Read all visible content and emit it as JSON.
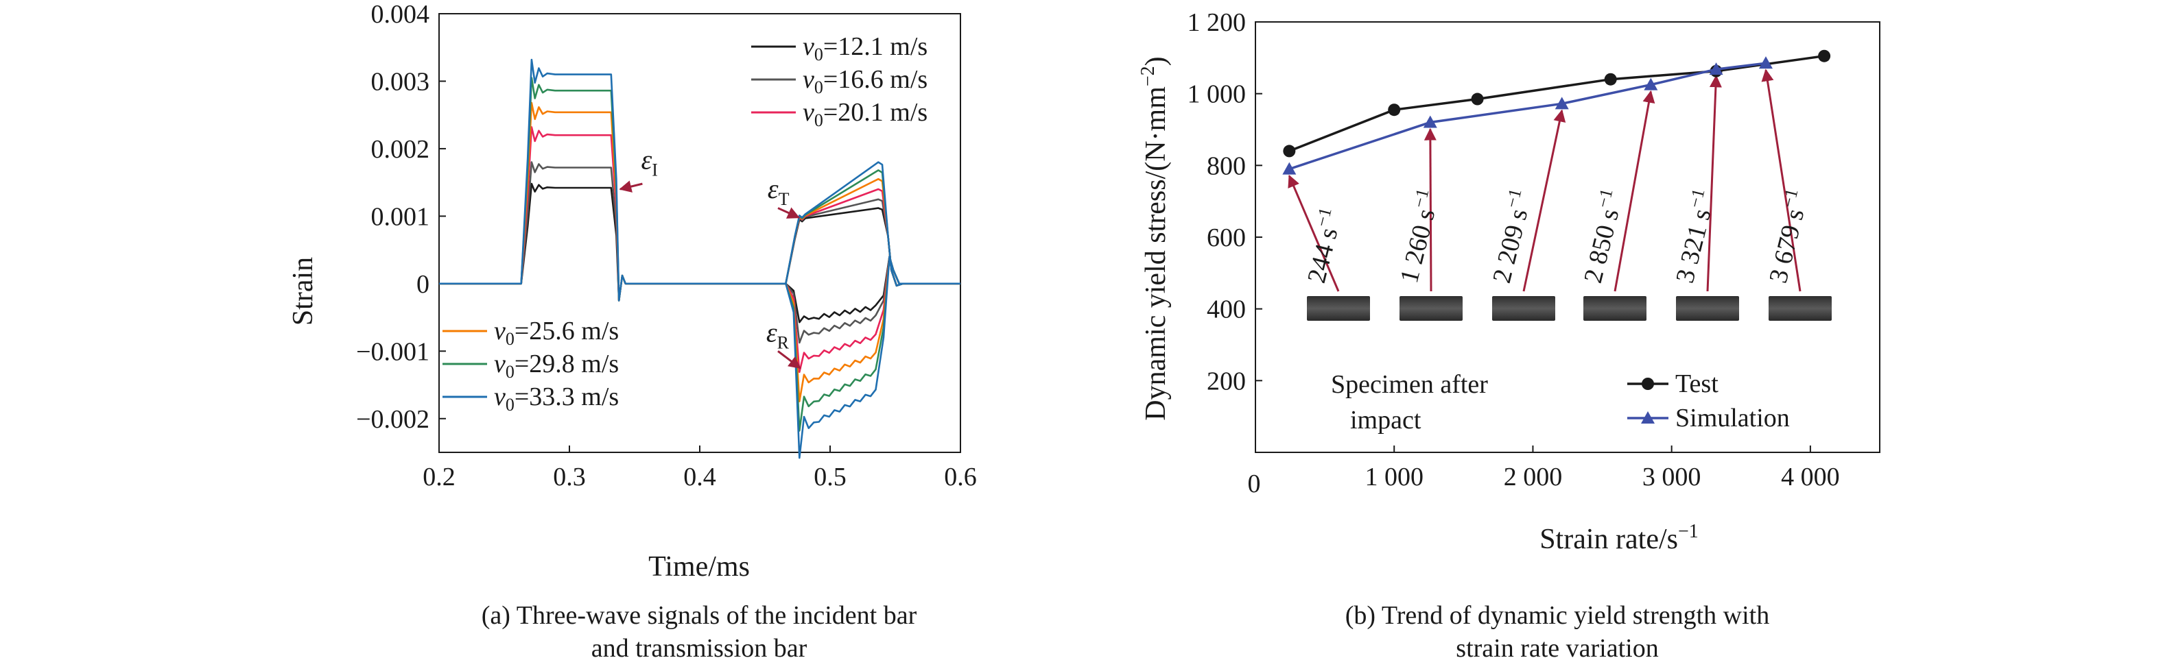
{
  "chart_data": [
    {
      "type": "line",
      "panel": "a",
      "caption_lines": [
        "(a) Three-wave signals of the incident bar",
        "and transmission bar"
      ],
      "xlabel": "Time/ms",
      "ylabel": "Strain",
      "xlim": [
        0.2,
        0.6
      ],
      "ylim": [
        -0.0025,
        0.004
      ],
      "xticks": [
        0.2,
        0.3,
        0.4,
        0.5,
        0.6
      ],
      "xtick_labels": [
        "0.2",
        "0.3",
        "0.4",
        "0.5",
        "0.6"
      ],
      "yticks": [
        -0.002,
        -0.001,
        0,
        0.001,
        0.002,
        0.003,
        0.004
      ],
      "ytick_labels": [
        "−0.002",
        "−0.001",
        "0",
        "0.001",
        "0.002",
        "0.003",
        "0.004"
      ],
      "grid": false,
      "legend_top": [
        "=12.1 m/s",
        "=16.6 m/s",
        "=20.1 m/s"
      ],
      "legend_bottom": [
        "=25.6 m/s",
        "=29.8 m/s",
        "=33.3 m/s"
      ],
      "legend_var": "v",
      "legend_sub": "0",
      "annotations": {
        "incident": {
          "text": "ε",
          "sub": "I",
          "x": 0.335,
          "y": 0.0016
        },
        "transmitted": {
          "text": "ε",
          "sub": "T",
          "x": 0.478,
          "y": 0.00095
        },
        "reflected": {
          "text": "ε",
          "sub": "R",
          "x": 0.478,
          "y": -0.00115
        }
      },
      "series": [
        {
          "velocity": 12.1,
          "color": "#1a1a1a",
          "incident": 0.00142,
          "transmitted_start": 0.00095,
          "transmitted_end": 0.00112,
          "reflected": -0.00052,
          "reflected_end": -0.00035,
          "peak_incident": 0.00148
        },
        {
          "velocity": 16.6,
          "color": "#555555",
          "incident": 0.00172,
          "transmitted_start": 0.00097,
          "transmitted_end": 0.00125,
          "reflected": -0.00075,
          "reflected_end": -0.0005,
          "peak_incident": 0.0018
        },
        {
          "velocity": 20.1,
          "color": "#e8245a",
          "incident": 0.0022,
          "transmitted_start": 0.00098,
          "transmitted_end": 0.0014,
          "reflected": -0.0011,
          "reflected_end": -0.00078,
          "peak_incident": 0.00232
        },
        {
          "velocity": 25.6,
          "color": "#f57c00",
          "incident": 0.00254,
          "transmitted_start": 0.00099,
          "transmitted_end": 0.00155,
          "reflected": -0.00145,
          "reflected_end": -0.00105,
          "peak_incident": 0.00268
        },
        {
          "velocity": 29.8,
          "color": "#2e8b57",
          "incident": 0.00286,
          "transmitted_start": 0.001,
          "transmitted_end": 0.00168,
          "reflected": -0.0018,
          "reflected_end": -0.0013,
          "peak_incident": 0.00305
        },
        {
          "velocity": 33.3,
          "color": "#1f6fb0",
          "incident": 0.0031,
          "transmitted_start": 0.00101,
          "transmitted_end": 0.0018,
          "reflected": -0.00212,
          "reflected_end": -0.0016,
          "peak_incident": 0.00332
        }
      ]
    },
    {
      "type": "line",
      "panel": "b",
      "caption_lines": [
        "(b) Trend of dynamic yield strength with",
        "strain rate variation"
      ],
      "xlabel": "Strain rate/s",
      "xlabel_sup": "−1",
      "ylabel": "Dynamic yield stress/(N·mm",
      "ylabel_sup": "−2",
      "ylabel_tail": ")",
      "xlim": [
        0,
        4500
      ],
      "ylim": [
        0,
        1200
      ],
      "xticks": [
        0,
        1000,
        2000,
        3000,
        4000
      ],
      "xtick_labels": [
        "0",
        "1 000",
        "2 000",
        "3 000",
        "4 000"
      ],
      "yticks": [
        200,
        400,
        600,
        800,
        1000,
        1200
      ],
      "ytick_labels": [
        "200",
        "400",
        "600",
        "800",
        "1 000",
        "1 200"
      ],
      "grid": false,
      "legend_position": "bottom-right",
      "series": [
        {
          "name": "Test",
          "color": "#1a1a1a",
          "marker": "circle",
          "x": [
            244,
            1000,
            1600,
            2560,
            3321,
            4100
          ],
          "y": [
            840,
            955,
            985,
            1040,
            1063,
            1105
          ]
        },
        {
          "name": "Simulation",
          "color": "#3d4fa8",
          "marker": "triangle",
          "x": [
            244,
            1260,
            2209,
            2850,
            3321,
            3679
          ],
          "y": [
            790,
            920,
            972,
            1025,
            1068,
            1085
          ]
        }
      ],
      "rate_labels": [
        {
          "base": "244 s",
          "sup": "−1",
          "x": 244
        },
        {
          "base": "1 260 s",
          "sup": "−1",
          "x": 1260
        },
        {
          "base": "2 209 s",
          "sup": "−1",
          "x": 2209
        },
        {
          "base": "2 850 s",
          "sup": "−1",
          "x": 2850
        },
        {
          "base": "3 321 s",
          "sup": "−1",
          "x": 3321
        },
        {
          "base": "3 679 s",
          "sup": "−1",
          "x": 3679
        }
      ],
      "specimen_label_lines": [
        "Specimen after",
        "impact"
      ],
      "arrow_color": "#a0203c",
      "specimen_color": "#3a3a3a"
    }
  ]
}
